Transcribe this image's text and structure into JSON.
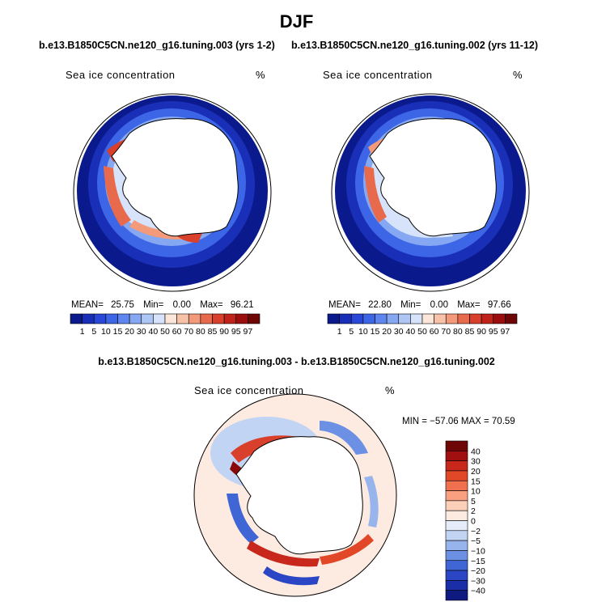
{
  "title": "DJF",
  "panels": [
    {
      "case_title": "b.e13.B1850C5CN.ne120_g16.tuning.003 (yrs 1-2)",
      "variable": "Sea ice concentration",
      "units": "%",
      "stats": {
        "mean_label": "MEAN=",
        "mean": "25.75",
        "min_label": "Min=",
        "min": "0.00",
        "max_label": "Max=",
        "max": "96.21"
      }
    },
    {
      "case_title": "b.e13.B1850C5CN.ne120_g16.tuning.002 (yrs 11-12)",
      "variable": "Sea ice concentration",
      "units": "%",
      "stats": {
        "mean_label": "MEAN=",
        "mean": "22.80",
        "min_label": "Min=",
        "min": "0.00",
        "max_label": "Max=",
        "max": "97.66"
      }
    }
  ],
  "colorbar_top": {
    "labels": [
      "1",
      "5",
      "10",
      "15",
      "20",
      "30",
      "40",
      "50",
      "60",
      "70",
      "80",
      "85",
      "90",
      "95",
      "97"
    ],
    "colors": [
      "#0a1a8c",
      "#1a2fb8",
      "#2a48d8",
      "#3d66e6",
      "#5e86ee",
      "#86a8f2",
      "#aec6f6",
      "#d6e3fa",
      "#fce6da",
      "#f8c2a8",
      "#f29a7a",
      "#e86a4c",
      "#d8402c",
      "#bf2218",
      "#9a0e0e",
      "#6e0606"
    ]
  },
  "difference": {
    "title": "b.e13.B1850C5CN.ne120_g16.tuning.003 - b.e13.B1850C5CN.ne120_g16.tuning.002",
    "variable": "Sea ice concentration",
    "units": "%",
    "stats_text": "MIN = −57.06 MAX =  70.59"
  },
  "colorbar_diff": {
    "labels": [
      "40",
      "30",
      "20",
      "15",
      "10",
      "5",
      "2",
      "0",
      "−2",
      "−5",
      "−10",
      "−15",
      "−20",
      "−30",
      "−40"
    ],
    "colors": [
      "#6e0606",
      "#a01010",
      "#c8281c",
      "#e04828",
      "#f07050",
      "#f8a080",
      "#fcd0b8",
      "#fdeae0",
      "#e4ecfa",
      "#c2d4f4",
      "#98b4ec",
      "#6c90e4",
      "#4066d6",
      "#2a46c4",
      "#1a2ea8",
      "#0e1a80"
    ]
  }
}
